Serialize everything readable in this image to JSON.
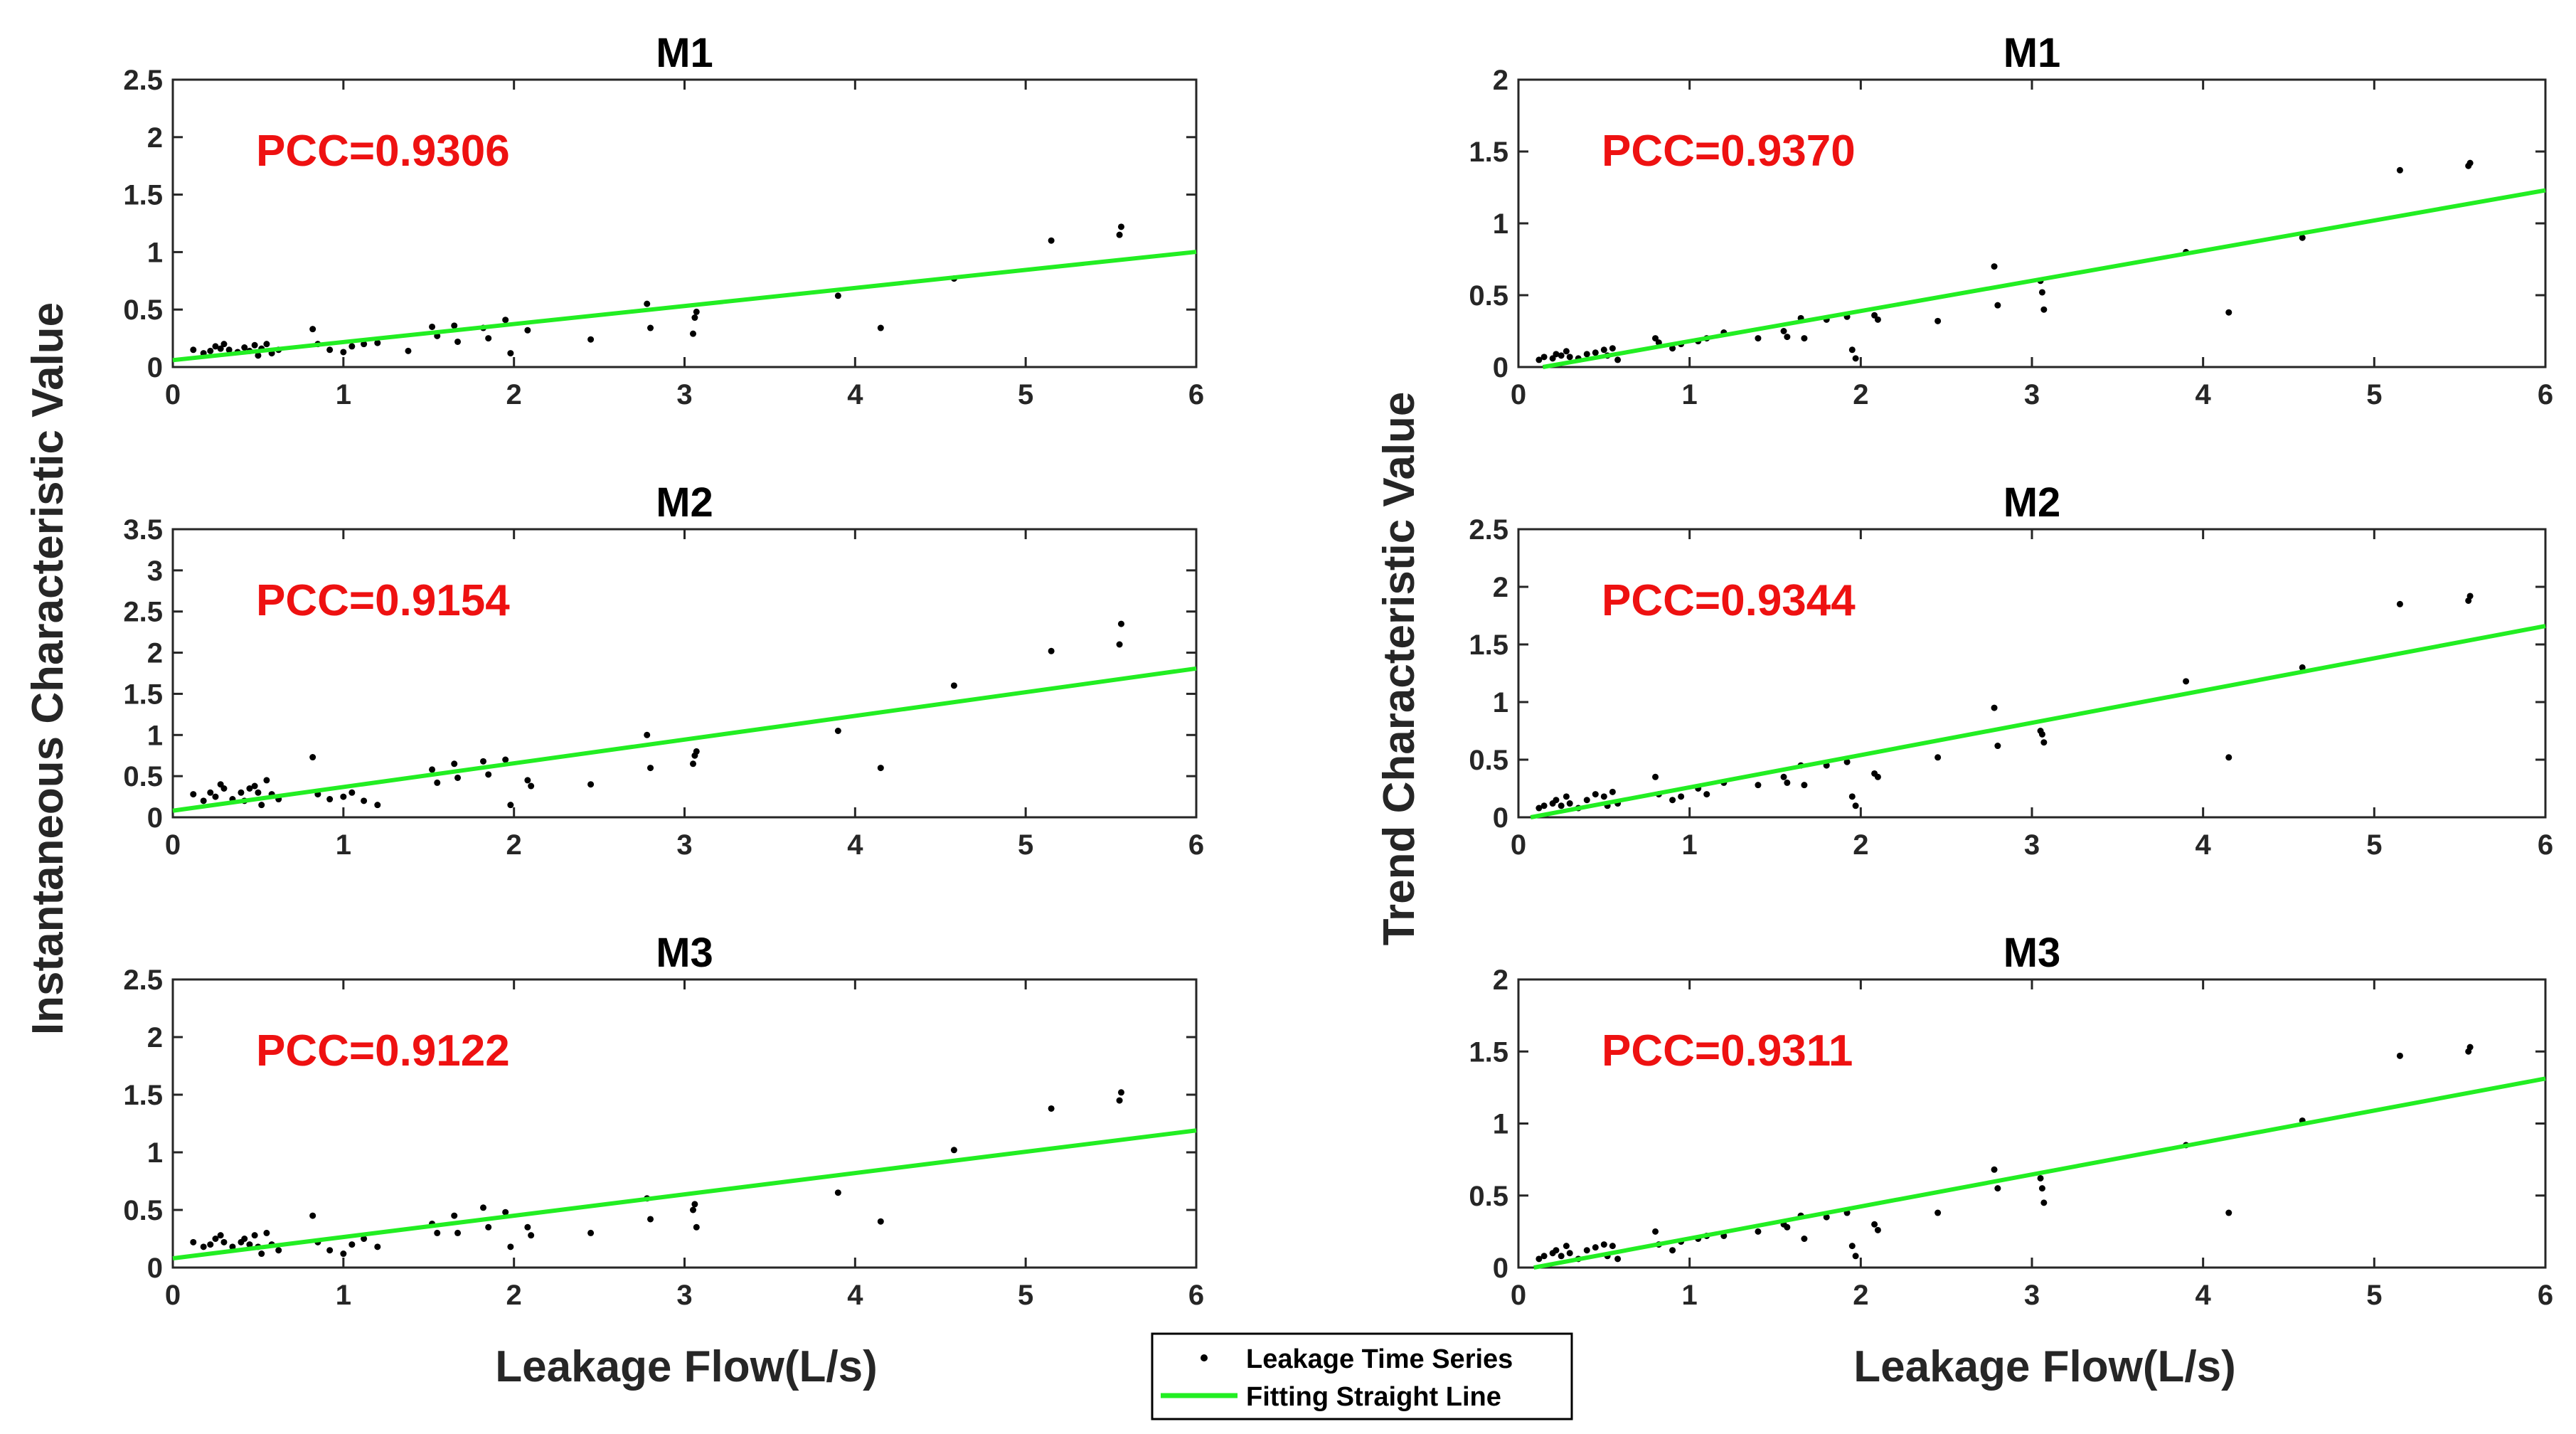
{
  "figure": {
    "left_ylabel": "Instantaneous Characteristic Value",
    "right_ylabel": "Trend Characteristic Value",
    "xlabel": "Leakage Flow(L/s)"
  },
  "legend": {
    "items": [
      {
        "label": "Leakage Time Series",
        "kind": "point",
        "color": "#000000"
      },
      {
        "label": "Fitting Straight Line",
        "kind": "line",
        "color": "#22ee22"
      }
    ]
  },
  "colors": {
    "points": "#000000",
    "fit_line": "#22ee22",
    "pcc_text": "#ee1111",
    "axes": "#262626"
  },
  "chart_data": [
    {
      "type": "scatter",
      "title": "M1",
      "annotation": "PCC=0.9306",
      "xlim": [
        0,
        6
      ],
      "ylim": [
        0,
        2.5
      ],
      "xticks": [
        "0",
        "1",
        "2",
        "3",
        "4",
        "5",
        "6"
      ],
      "yticks": [
        "0",
        "0.5",
        "1",
        "1.5",
        "2",
        "2.5"
      ],
      "fit": {
        "intercept": 0.06,
        "slope": 0.157
      },
      "points": [
        [
          0.12,
          0.15
        ],
        [
          0.18,
          0.12
        ],
        [
          0.22,
          0.14
        ],
        [
          0.25,
          0.18
        ],
        [
          0.28,
          0.16
        ],
        [
          0.3,
          0.2
        ],
        [
          0.33,
          0.15
        ],
        [
          0.38,
          0.13
        ],
        [
          0.42,
          0.17
        ],
        [
          0.45,
          0.14
        ],
        [
          0.48,
          0.19
        ],
        [
          0.5,
          0.1
        ],
        [
          0.52,
          0.16
        ],
        [
          0.55,
          0.2
        ],
        [
          0.58,
          0.12
        ],
        [
          0.62,
          0.15
        ],
        [
          0.82,
          0.33
        ],
        [
          0.85,
          0.2
        ],
        [
          0.92,
          0.15
        ],
        [
          1.0,
          0.13
        ],
        [
          1.05,
          0.18
        ],
        [
          1.12,
          0.2
        ],
        [
          1.2,
          0.21
        ],
        [
          1.38,
          0.14
        ],
        [
          1.52,
          0.35
        ],
        [
          1.55,
          0.27
        ],
        [
          1.65,
          0.36
        ],
        [
          1.67,
          0.22
        ],
        [
          1.82,
          0.34
        ],
        [
          1.85,
          0.25
        ],
        [
          1.95,
          0.41
        ],
        [
          1.98,
          0.12
        ],
        [
          2.08,
          0.32
        ],
        [
          2.45,
          0.24
        ],
        [
          2.78,
          0.55
        ],
        [
          2.8,
          0.34
        ],
        [
          3.05,
          0.29
        ],
        [
          3.06,
          0.43
        ],
        [
          3.07,
          0.48
        ],
        [
          3.9,
          0.62
        ],
        [
          4.15,
          0.34
        ],
        [
          4.58,
          0.77
        ],
        [
          5.15,
          1.1
        ],
        [
          5.55,
          1.15
        ],
        [
          5.56,
          1.22
        ]
      ]
    },
    {
      "type": "scatter",
      "title": "M1",
      "annotation": "PCC=0.9370",
      "xlim": [
        0,
        6
      ],
      "ylim": [
        0,
        2
      ],
      "xticks": [
        "0",
        "1",
        "2",
        "3",
        "4",
        "5",
        "6"
      ],
      "yticks": [
        "0",
        "0.5",
        "1",
        "1.5",
        "2"
      ],
      "fit": {
        "intercept": -0.03,
        "slope": 0.21
      },
      "points": [
        [
          0.12,
          0.05
        ],
        [
          0.15,
          0.07
        ],
        [
          0.2,
          0.06
        ],
        [
          0.22,
          0.09
        ],
        [
          0.25,
          0.08
        ],
        [
          0.28,
          0.11
        ],
        [
          0.3,
          0.07
        ],
        [
          0.35,
          0.06
        ],
        [
          0.4,
          0.09
        ],
        [
          0.45,
          0.1
        ],
        [
          0.5,
          0.12
        ],
        [
          0.52,
          0.08
        ],
        [
          0.55,
          0.13
        ],
        [
          0.58,
          0.05
        ],
        [
          0.8,
          0.2
        ],
        [
          0.82,
          0.17
        ],
        [
          0.9,
          0.13
        ],
        [
          0.95,
          0.16
        ],
        [
          1.05,
          0.18
        ],
        [
          1.1,
          0.2
        ],
        [
          1.2,
          0.24
        ],
        [
          1.4,
          0.2
        ],
        [
          1.55,
          0.25
        ],
        [
          1.57,
          0.21
        ],
        [
          1.65,
          0.34
        ],
        [
          1.67,
          0.2
        ],
        [
          1.8,
          0.33
        ],
        [
          1.92,
          0.35
        ],
        [
          1.95,
          0.12
        ],
        [
          1.97,
          0.06
        ],
        [
          2.08,
          0.36
        ],
        [
          2.1,
          0.33
        ],
        [
          2.45,
          0.32
        ],
        [
          2.78,
          0.7
        ],
        [
          2.8,
          0.43
        ],
        [
          3.05,
          0.6
        ],
        [
          3.06,
          0.52
        ],
        [
          3.07,
          0.4
        ],
        [
          3.9,
          0.8
        ],
        [
          4.15,
          0.38
        ],
        [
          4.58,
          0.9
        ],
        [
          5.15,
          1.37
        ],
        [
          5.55,
          1.4
        ],
        [
          5.56,
          1.42
        ]
      ]
    },
    {
      "type": "scatter",
      "title": "M2",
      "annotation": "PCC=0.9154",
      "xlim": [
        0,
        6
      ],
      "ylim": [
        0,
        3.5
      ],
      "xticks": [
        "0",
        "1",
        "2",
        "3",
        "4",
        "5",
        "6"
      ],
      "yticks": [
        "0",
        "0.5",
        "1",
        "1.5",
        "2",
        "2.5",
        "3",
        "3.5"
      ],
      "fit": {
        "intercept": 0.08,
        "slope": 0.288
      },
      "points": [
        [
          0.12,
          0.28
        ],
        [
          0.18,
          0.2
        ],
        [
          0.22,
          0.3
        ],
        [
          0.25,
          0.25
        ],
        [
          0.28,
          0.4
        ],
        [
          0.3,
          0.35
        ],
        [
          0.35,
          0.22
        ],
        [
          0.4,
          0.3
        ],
        [
          0.42,
          0.2
        ],
        [
          0.45,
          0.35
        ],
        [
          0.48,
          0.38
        ],
        [
          0.5,
          0.3
        ],
        [
          0.52,
          0.15
        ],
        [
          0.55,
          0.45
        ],
        [
          0.58,
          0.28
        ],
        [
          0.62,
          0.22
        ],
        [
          0.82,
          0.73
        ],
        [
          0.85,
          0.28
        ],
        [
          0.92,
          0.22
        ],
        [
          1.0,
          0.25
        ],
        [
          1.05,
          0.3
        ],
        [
          1.12,
          0.2
        ],
        [
          1.2,
          0.15
        ],
        [
          1.52,
          0.58
        ],
        [
          1.55,
          0.42
        ],
        [
          1.65,
          0.65
        ],
        [
          1.67,
          0.48
        ],
        [
          1.82,
          0.68
        ],
        [
          1.85,
          0.52
        ],
        [
          1.95,
          0.7
        ],
        [
          1.98,
          0.15
        ],
        [
          2.08,
          0.45
        ],
        [
          2.1,
          0.38
        ],
        [
          2.45,
          0.4
        ],
        [
          2.78,
          1.0
        ],
        [
          2.8,
          0.6
        ],
        [
          3.05,
          0.65
        ],
        [
          3.06,
          0.75
        ],
        [
          3.07,
          0.8
        ],
        [
          3.9,
          1.05
        ],
        [
          4.15,
          0.6
        ],
        [
          4.58,
          1.6
        ],
        [
          5.15,
          2.02
        ],
        [
          5.55,
          2.1
        ],
        [
          5.56,
          2.35
        ]
      ]
    },
    {
      "type": "scatter",
      "title": "M2",
      "annotation": "PCC=0.9344",
      "xlim": [
        0,
        6
      ],
      "ylim": [
        0,
        2.5
      ],
      "xticks": [
        "0",
        "1",
        "2",
        "3",
        "4",
        "5",
        "6"
      ],
      "yticks": [
        "0",
        "0.5",
        "1",
        "1.5",
        "2",
        "2.5"
      ],
      "fit": {
        "intercept": -0.02,
        "slope": 0.28
      },
      "points": [
        [
          0.12,
          0.08
        ],
        [
          0.15,
          0.1
        ],
        [
          0.2,
          0.12
        ],
        [
          0.22,
          0.15
        ],
        [
          0.25,
          0.1
        ],
        [
          0.28,
          0.18
        ],
        [
          0.3,
          0.12
        ],
        [
          0.35,
          0.08
        ],
        [
          0.4,
          0.15
        ],
        [
          0.45,
          0.2
        ],
        [
          0.5,
          0.18
        ],
        [
          0.52,
          0.1
        ],
        [
          0.55,
          0.22
        ],
        [
          0.58,
          0.12
        ],
        [
          0.8,
          0.35
        ],
        [
          0.82,
          0.2
        ],
        [
          0.9,
          0.15
        ],
        [
          0.95,
          0.18
        ],
        [
          1.05,
          0.25
        ],
        [
          1.1,
          0.2
        ],
        [
          1.2,
          0.3
        ],
        [
          1.4,
          0.28
        ],
        [
          1.55,
          0.35
        ],
        [
          1.57,
          0.3
        ],
        [
          1.65,
          0.45
        ],
        [
          1.67,
          0.28
        ],
        [
          1.8,
          0.45
        ],
        [
          1.92,
          0.48
        ],
        [
          1.95,
          0.18
        ],
        [
          1.97,
          0.1
        ],
        [
          2.08,
          0.38
        ],
        [
          2.1,
          0.35
        ],
        [
          2.45,
          0.52
        ],
        [
          2.78,
          0.95
        ],
        [
          2.8,
          0.62
        ],
        [
          3.05,
          0.75
        ],
        [
          3.06,
          0.72
        ],
        [
          3.07,
          0.65
        ],
        [
          3.9,
          1.18
        ],
        [
          4.15,
          0.52
        ],
        [
          4.58,
          1.3
        ],
        [
          5.15,
          1.85
        ],
        [
          5.55,
          1.88
        ],
        [
          5.56,
          1.92
        ]
      ]
    },
    {
      "type": "scatter",
      "title": "M3",
      "annotation": "PCC=0.9122",
      "xlim": [
        0,
        6
      ],
      "ylim": [
        0,
        2.5
      ],
      "xticks": [
        "0",
        "1",
        "2",
        "3",
        "4",
        "5",
        "6"
      ],
      "yticks": [
        "0",
        "0.5",
        "1",
        "1.5",
        "2",
        "2.5"
      ],
      "fit": {
        "intercept": 0.08,
        "slope": 0.185
      },
      "points": [
        [
          0.12,
          0.22
        ],
        [
          0.18,
          0.18
        ],
        [
          0.22,
          0.2
        ],
        [
          0.25,
          0.25
        ],
        [
          0.28,
          0.28
        ],
        [
          0.3,
          0.22
        ],
        [
          0.35,
          0.18
        ],
        [
          0.4,
          0.22
        ],
        [
          0.42,
          0.25
        ],
        [
          0.45,
          0.2
        ],
        [
          0.48,
          0.28
        ],
        [
          0.5,
          0.18
        ],
        [
          0.52,
          0.12
        ],
        [
          0.55,
          0.3
        ],
        [
          0.58,
          0.2
        ],
        [
          0.62,
          0.15
        ],
        [
          0.82,
          0.45
        ],
        [
          0.85,
          0.22
        ],
        [
          0.92,
          0.15
        ],
        [
          1.0,
          0.12
        ],
        [
          1.05,
          0.2
        ],
        [
          1.12,
          0.25
        ],
        [
          1.2,
          0.18
        ],
        [
          1.52,
          0.38
        ],
        [
          1.55,
          0.3
        ],
        [
          1.65,
          0.45
        ],
        [
          1.67,
          0.3
        ],
        [
          1.82,
          0.52
        ],
        [
          1.85,
          0.35
        ],
        [
          1.95,
          0.48
        ],
        [
          1.98,
          0.18
        ],
        [
          2.08,
          0.35
        ],
        [
          2.1,
          0.28
        ],
        [
          2.45,
          0.3
        ],
        [
          2.78,
          0.6
        ],
        [
          2.8,
          0.42
        ],
        [
          3.05,
          0.5
        ],
        [
          3.06,
          0.55
        ],
        [
          3.07,
          0.35
        ],
        [
          3.9,
          0.65
        ],
        [
          4.15,
          0.4
        ],
        [
          4.58,
          1.02
        ],
        [
          5.15,
          1.38
        ],
        [
          5.55,
          1.45
        ],
        [
          5.56,
          1.52
        ]
      ]
    },
    {
      "type": "scatter",
      "title": "M3",
      "annotation": "PCC=0.9311",
      "xlim": [
        0,
        6
      ],
      "ylim": [
        0,
        2
      ],
      "xticks": [
        "0",
        "1",
        "2",
        "3",
        "4",
        "5",
        "6"
      ],
      "yticks": [
        "0",
        "0.5",
        "1",
        "1.5",
        "2"
      ],
      "fit": {
        "intercept": -0.02,
        "slope": 0.222
      },
      "points": [
        [
          0.12,
          0.06
        ],
        [
          0.15,
          0.08
        ],
        [
          0.2,
          0.1
        ],
        [
          0.22,
          0.12
        ],
        [
          0.25,
          0.08
        ],
        [
          0.28,
          0.15
        ],
        [
          0.3,
          0.1
        ],
        [
          0.35,
          0.06
        ],
        [
          0.4,
          0.12
        ],
        [
          0.45,
          0.14
        ],
        [
          0.5,
          0.16
        ],
        [
          0.52,
          0.08
        ],
        [
          0.55,
          0.15
        ],
        [
          0.58,
          0.06
        ],
        [
          0.8,
          0.25
        ],
        [
          0.82,
          0.16
        ],
        [
          0.9,
          0.12
        ],
        [
          0.95,
          0.18
        ],
        [
          1.05,
          0.2
        ],
        [
          1.1,
          0.22
        ],
        [
          1.2,
          0.22
        ],
        [
          1.4,
          0.25
        ],
        [
          1.55,
          0.3
        ],
        [
          1.57,
          0.28
        ],
        [
          1.65,
          0.36
        ],
        [
          1.67,
          0.2
        ],
        [
          1.8,
          0.35
        ],
        [
          1.92,
          0.38
        ],
        [
          1.95,
          0.15
        ],
        [
          1.97,
          0.08
        ],
        [
          2.08,
          0.3
        ],
        [
          2.1,
          0.26
        ],
        [
          2.45,
          0.38
        ],
        [
          2.78,
          0.68
        ],
        [
          2.8,
          0.55
        ],
        [
          3.05,
          0.62
        ],
        [
          3.06,
          0.55
        ],
        [
          3.07,
          0.45
        ],
        [
          3.9,
          0.85
        ],
        [
          4.15,
          0.38
        ],
        [
          4.58,
          1.02
        ],
        [
          5.15,
          1.47
        ],
        [
          5.55,
          1.5
        ],
        [
          5.56,
          1.53
        ]
      ]
    }
  ]
}
